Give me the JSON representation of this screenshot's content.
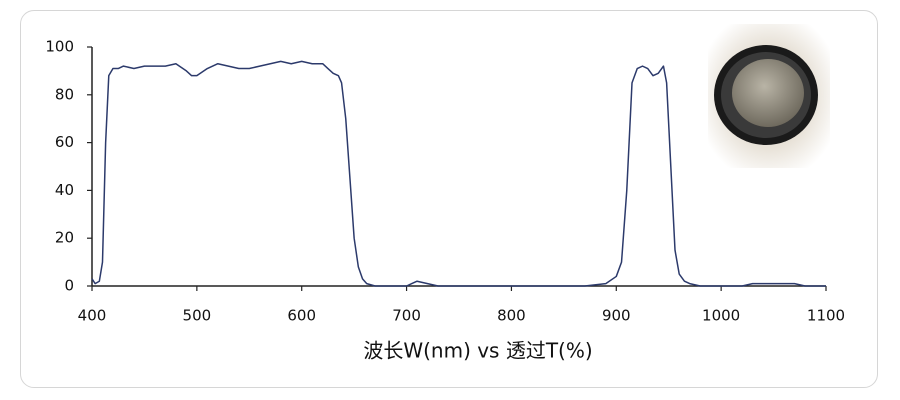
{
  "chart_data": {
    "type": "line",
    "x_label": "波长W(nm) vs 透过T(%)",
    "x": [
      400,
      403,
      407,
      410,
      413,
      416,
      420,
      425,
      430,
      440,
      450,
      460,
      470,
      480,
      490,
      495,
      500,
      510,
      520,
      530,
      540,
      550,
      560,
      570,
      580,
      590,
      600,
      610,
      620,
      625,
      630,
      635,
      638,
      642,
      646,
      650,
      654,
      658,
      662,
      670,
      700,
      705,
      710,
      720,
      730,
      750,
      800,
      850,
      870,
      890,
      900,
      905,
      910,
      915,
      920,
      925,
      930,
      935,
      940,
      945,
      948,
      952,
      956,
      960,
      965,
      970,
      980,
      1000,
      1020,
      1030,
      1050,
      1070,
      1080,
      1100
    ],
    "series": [
      {
        "color": "#2c3a6b",
        "values": [
          3,
          1,
          2,
          10,
          60,
          88,
          91,
          91,
          92,
          91,
          92,
          92,
          92,
          93,
          90,
          88,
          88,
          91,
          93,
          92,
          91,
          91,
          92,
          93,
          94,
          93,
          94,
          93,
          93,
          91,
          89,
          88,
          85,
          70,
          45,
          20,
          8,
          3,
          1,
          0,
          0,
          1,
          2,
          1,
          0,
          0,
          0,
          0,
          0,
          1,
          4,
          10,
          40,
          85,
          91,
          92,
          91,
          88,
          89,
          92,
          85,
          50,
          15,
          5,
          2,
          1,
          0,
          0,
          0,
          1,
          1,
          1,
          0,
          0
        ]
      }
    ],
    "xlim": [
      400,
      1100
    ],
    "ylim": [
      0,
      100
    ],
    "xticks": [
      400,
      500,
      600,
      700,
      800,
      900,
      1000,
      1100
    ],
    "yticks": [
      0,
      20,
      40,
      60,
      80,
      100
    ],
    "grid": false
  }
}
